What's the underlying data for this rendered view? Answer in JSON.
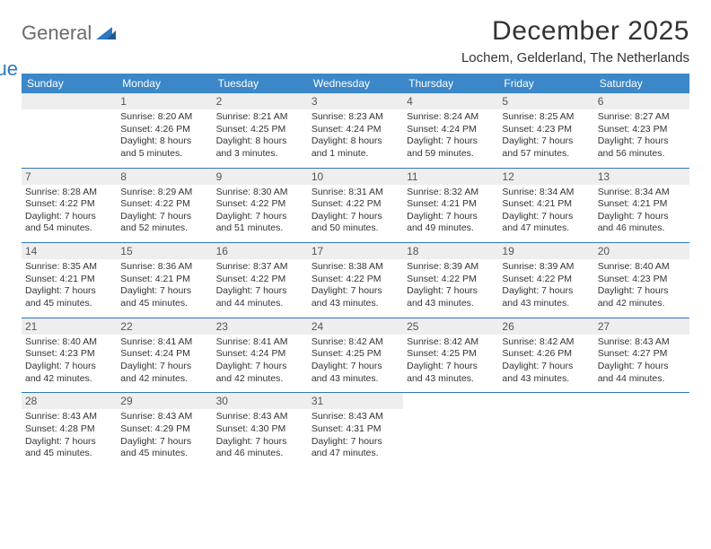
{
  "brand": {
    "general": "General",
    "blue": "Blue"
  },
  "title": "December 2025",
  "location": "Lochem, Gelderland, The Netherlands",
  "day_headers": [
    "Sunday",
    "Monday",
    "Tuesday",
    "Wednesday",
    "Thursday",
    "Friday",
    "Saturday"
  ],
  "colors": {
    "header_bg": "#3c87c7",
    "header_text": "#ffffff",
    "row_border": "#2f78bf",
    "daynum_bg": "#eeeeee",
    "text": "#333333"
  },
  "weeks": [
    [
      {
        "day": "",
        "sunrise": "",
        "sunset": "",
        "daylight": ""
      },
      {
        "day": "1",
        "sunrise": "Sunrise: 8:20 AM",
        "sunset": "Sunset: 4:26 PM",
        "daylight": "Daylight: 8 hours and 5 minutes."
      },
      {
        "day": "2",
        "sunrise": "Sunrise: 8:21 AM",
        "sunset": "Sunset: 4:25 PM",
        "daylight": "Daylight: 8 hours and 3 minutes."
      },
      {
        "day": "3",
        "sunrise": "Sunrise: 8:23 AM",
        "sunset": "Sunset: 4:24 PM",
        "daylight": "Daylight: 8 hours and 1 minute."
      },
      {
        "day": "4",
        "sunrise": "Sunrise: 8:24 AM",
        "sunset": "Sunset: 4:24 PM",
        "daylight": "Daylight: 7 hours and 59 minutes."
      },
      {
        "day": "5",
        "sunrise": "Sunrise: 8:25 AM",
        "sunset": "Sunset: 4:23 PM",
        "daylight": "Daylight: 7 hours and 57 minutes."
      },
      {
        "day": "6",
        "sunrise": "Sunrise: 8:27 AM",
        "sunset": "Sunset: 4:23 PM",
        "daylight": "Daylight: 7 hours and 56 minutes."
      }
    ],
    [
      {
        "day": "7",
        "sunrise": "Sunrise: 8:28 AM",
        "sunset": "Sunset: 4:22 PM",
        "daylight": "Daylight: 7 hours and 54 minutes."
      },
      {
        "day": "8",
        "sunrise": "Sunrise: 8:29 AM",
        "sunset": "Sunset: 4:22 PM",
        "daylight": "Daylight: 7 hours and 52 minutes."
      },
      {
        "day": "9",
        "sunrise": "Sunrise: 8:30 AM",
        "sunset": "Sunset: 4:22 PM",
        "daylight": "Daylight: 7 hours and 51 minutes."
      },
      {
        "day": "10",
        "sunrise": "Sunrise: 8:31 AM",
        "sunset": "Sunset: 4:22 PM",
        "daylight": "Daylight: 7 hours and 50 minutes."
      },
      {
        "day": "11",
        "sunrise": "Sunrise: 8:32 AM",
        "sunset": "Sunset: 4:21 PM",
        "daylight": "Daylight: 7 hours and 49 minutes."
      },
      {
        "day": "12",
        "sunrise": "Sunrise: 8:34 AM",
        "sunset": "Sunset: 4:21 PM",
        "daylight": "Daylight: 7 hours and 47 minutes."
      },
      {
        "day": "13",
        "sunrise": "Sunrise: 8:34 AM",
        "sunset": "Sunset: 4:21 PM",
        "daylight": "Daylight: 7 hours and 46 minutes."
      }
    ],
    [
      {
        "day": "14",
        "sunrise": "Sunrise: 8:35 AM",
        "sunset": "Sunset: 4:21 PM",
        "daylight": "Daylight: 7 hours and 45 minutes."
      },
      {
        "day": "15",
        "sunrise": "Sunrise: 8:36 AM",
        "sunset": "Sunset: 4:21 PM",
        "daylight": "Daylight: 7 hours and 45 minutes."
      },
      {
        "day": "16",
        "sunrise": "Sunrise: 8:37 AM",
        "sunset": "Sunset: 4:22 PM",
        "daylight": "Daylight: 7 hours and 44 minutes."
      },
      {
        "day": "17",
        "sunrise": "Sunrise: 8:38 AM",
        "sunset": "Sunset: 4:22 PM",
        "daylight": "Daylight: 7 hours and 43 minutes."
      },
      {
        "day": "18",
        "sunrise": "Sunrise: 8:39 AM",
        "sunset": "Sunset: 4:22 PM",
        "daylight": "Daylight: 7 hours and 43 minutes."
      },
      {
        "day": "19",
        "sunrise": "Sunrise: 8:39 AM",
        "sunset": "Sunset: 4:22 PM",
        "daylight": "Daylight: 7 hours and 43 minutes."
      },
      {
        "day": "20",
        "sunrise": "Sunrise: 8:40 AM",
        "sunset": "Sunset: 4:23 PM",
        "daylight": "Daylight: 7 hours and 42 minutes."
      }
    ],
    [
      {
        "day": "21",
        "sunrise": "Sunrise: 8:40 AM",
        "sunset": "Sunset: 4:23 PM",
        "daylight": "Daylight: 7 hours and 42 minutes."
      },
      {
        "day": "22",
        "sunrise": "Sunrise: 8:41 AM",
        "sunset": "Sunset: 4:24 PM",
        "daylight": "Daylight: 7 hours and 42 minutes."
      },
      {
        "day": "23",
        "sunrise": "Sunrise: 8:41 AM",
        "sunset": "Sunset: 4:24 PM",
        "daylight": "Daylight: 7 hours and 42 minutes."
      },
      {
        "day": "24",
        "sunrise": "Sunrise: 8:42 AM",
        "sunset": "Sunset: 4:25 PM",
        "daylight": "Daylight: 7 hours and 43 minutes."
      },
      {
        "day": "25",
        "sunrise": "Sunrise: 8:42 AM",
        "sunset": "Sunset: 4:25 PM",
        "daylight": "Daylight: 7 hours and 43 minutes."
      },
      {
        "day": "26",
        "sunrise": "Sunrise: 8:42 AM",
        "sunset": "Sunset: 4:26 PM",
        "daylight": "Daylight: 7 hours and 43 minutes."
      },
      {
        "day": "27",
        "sunrise": "Sunrise: 8:43 AM",
        "sunset": "Sunset: 4:27 PM",
        "daylight": "Daylight: 7 hours and 44 minutes."
      }
    ],
    [
      {
        "day": "28",
        "sunrise": "Sunrise: 8:43 AM",
        "sunset": "Sunset: 4:28 PM",
        "daylight": "Daylight: 7 hours and 45 minutes."
      },
      {
        "day": "29",
        "sunrise": "Sunrise: 8:43 AM",
        "sunset": "Sunset: 4:29 PM",
        "daylight": "Daylight: 7 hours and 45 minutes."
      },
      {
        "day": "30",
        "sunrise": "Sunrise: 8:43 AM",
        "sunset": "Sunset: 4:30 PM",
        "daylight": "Daylight: 7 hours and 46 minutes."
      },
      {
        "day": "31",
        "sunrise": "Sunrise: 8:43 AM",
        "sunset": "Sunset: 4:31 PM",
        "daylight": "Daylight: 7 hours and 47 minutes."
      },
      {
        "day": "",
        "sunrise": "",
        "sunset": "",
        "daylight": ""
      },
      {
        "day": "",
        "sunrise": "",
        "sunset": "",
        "daylight": ""
      },
      {
        "day": "",
        "sunrise": "",
        "sunset": "",
        "daylight": ""
      }
    ]
  ]
}
